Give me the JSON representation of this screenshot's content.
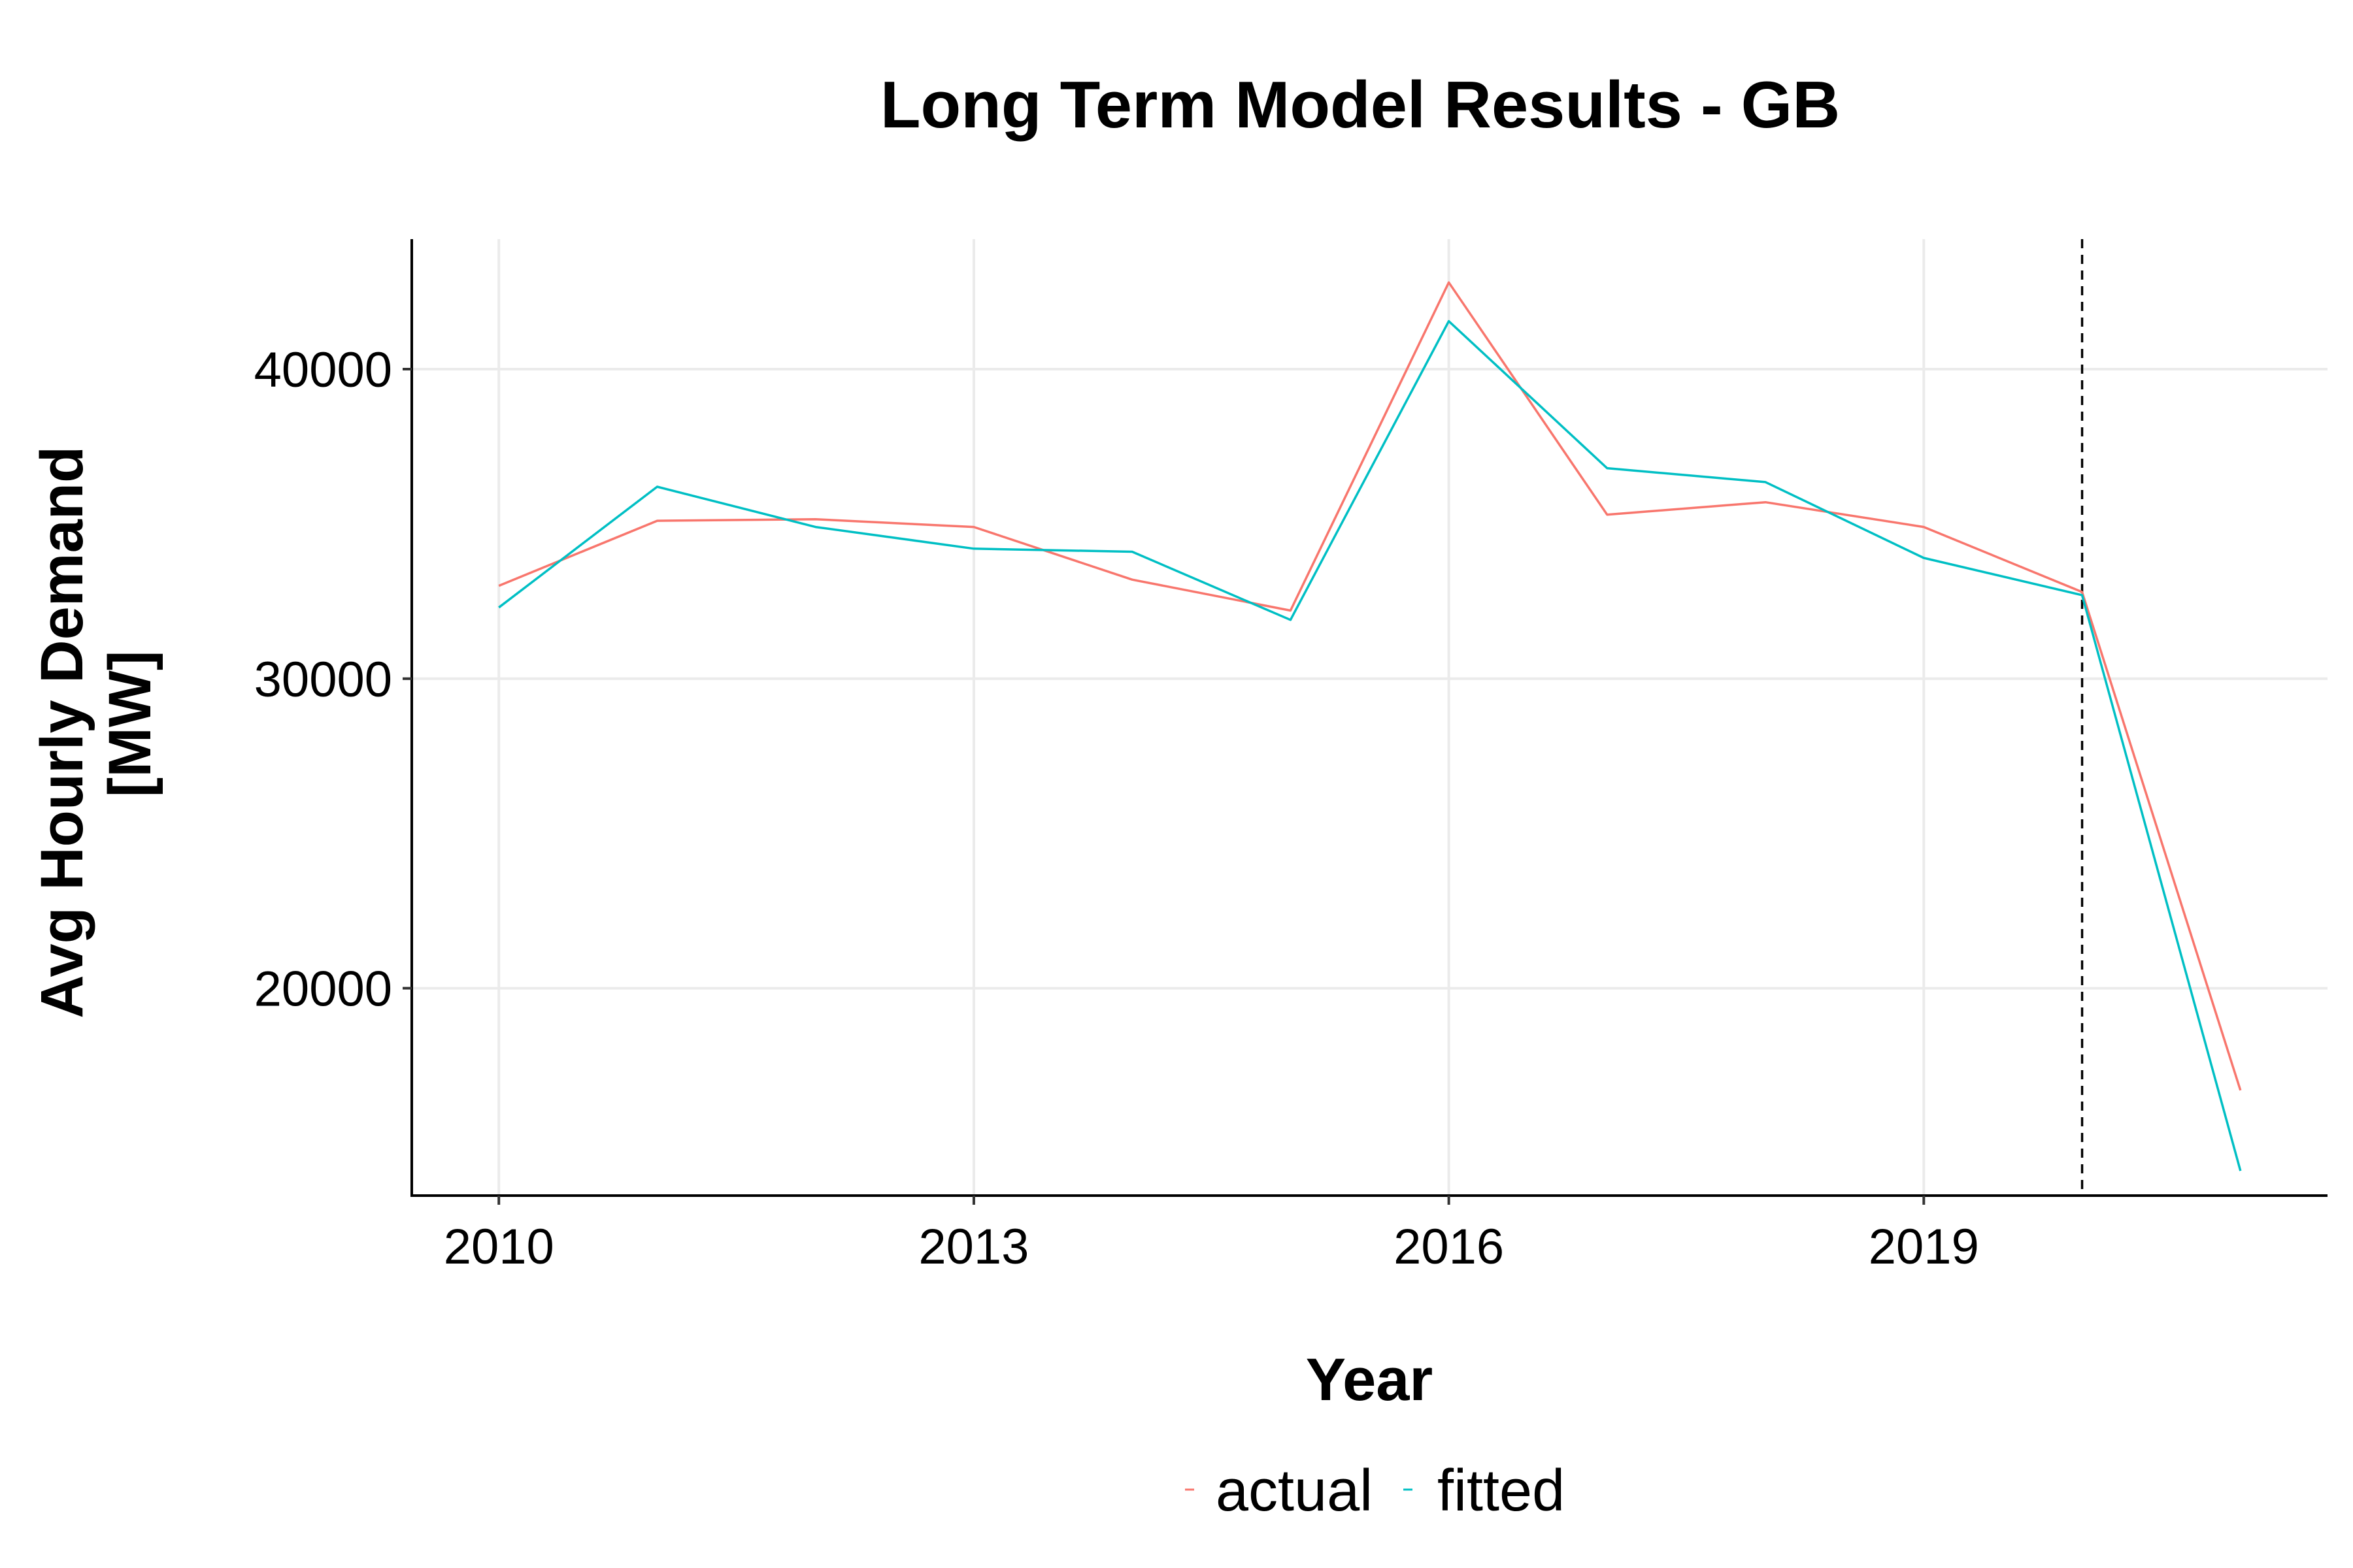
{
  "chart_data": {
    "type": "line",
    "title": "Long Term Model Results - GB",
    "xlabel": "Year",
    "ylabel": "Avg Hourly Demand\n[MW]",
    "ylabel_lines": [
      "Avg Hourly Demand",
      "[MW]"
    ],
    "xlim": [
      2009.45,
      2021.55
    ],
    "ylim": [
      13300,
      44200
    ],
    "x_ticks": [
      2010,
      2013,
      2016,
      2019
    ],
    "y_ticks": [
      20000,
      30000,
      40000
    ],
    "grid": true,
    "legend_position": "bottom",
    "vline": {
      "x": 2020,
      "style": "dashed"
    },
    "x": [
      2010,
      2011,
      2012,
      2013,
      2014,
      2015,
      2016,
      2017,
      2018,
      2019,
      2020,
      2021
    ],
    "series": [
      {
        "name": "actual",
        "color": "#F8766D",
        "values": [
          33000,
          35100,
          35150,
          34900,
          33200,
          32200,
          42800,
          35300,
          35700,
          34900,
          32800,
          16700
        ]
      },
      {
        "name": "fitted",
        "color": "#00BFC4",
        "values": [
          32300,
          36200,
          34900,
          34200,
          34100,
          31900,
          41550,
          36800,
          36350,
          33900,
          32700,
          14100
        ]
      }
    ]
  }
}
